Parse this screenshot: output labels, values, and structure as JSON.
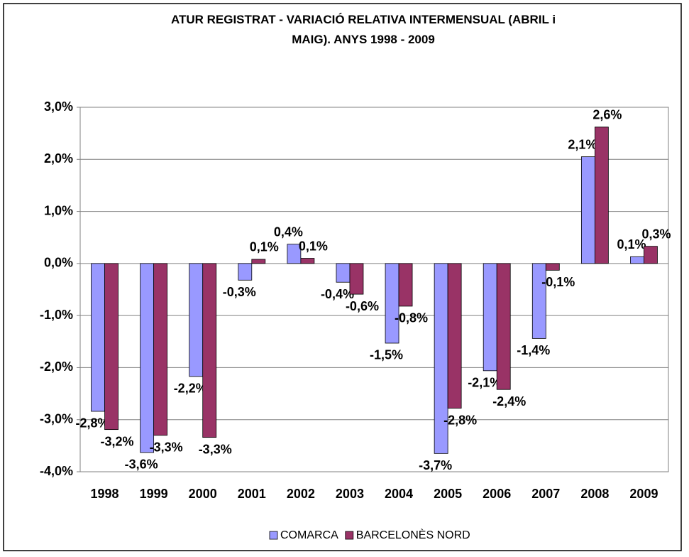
{
  "chart_data": {
    "type": "bar",
    "title": "ATUR REGISTRAT - VARIACIÓ RELATIVA INTERMENSUAL  (ABRIL i MAIG). ANYS 1998 - 2009",
    "categories": [
      "1998",
      "1999",
      "2000",
      "2001",
      "2002",
      "2003",
      "2004",
      "2005",
      "2006",
      "2007",
      "2008",
      "2009"
    ],
    "series": [
      {
        "name": "COMARCA",
        "color": "#9999ff",
        "values": [
          -2.84,
          -3.63,
          -2.17,
          -0.32,
          0.37,
          -0.36,
          -1.53,
          -3.65,
          -2.06,
          -1.44,
          2.05,
          0.13
        ],
        "value_labels": [
          "-2,8%",
          "-3,6%",
          "-2,2%",
          "-0,3%",
          "0,4%",
          "-0,4%",
          "-1,5%",
          "-3,7%",
          "-2,1%",
          "-1,4%",
          "2,1%",
          "0,1%"
        ]
      },
      {
        "name": "BARCELONÈS NORD",
        "color": "#993366",
        "values": [
          -3.19,
          -3.3,
          -3.34,
          0.08,
          0.1,
          -0.59,
          -0.82,
          -2.78,
          -2.42,
          -0.13,
          2.62,
          0.33
        ],
        "value_labels": [
          "-3,2%",
          "-3,3%",
          "-3,3%",
          "0,1%",
          "0,1%",
          "-0,6%",
          "-0,8%",
          "-2,8%",
          "-2,4%",
          "-0,1%",
          "2,6%",
          "0,3%"
        ]
      }
    ],
    "ylim": [
      -4,
      3
    ],
    "yticks": [
      {
        "value": -4,
        "label": "-4,0%"
      },
      {
        "value": -3,
        "label": "-3,0%"
      },
      {
        "value": -2,
        "label": "-2,0%"
      },
      {
        "value": -1,
        "label": "-1,0%"
      },
      {
        "value": 0,
        "label": "0,0%"
      },
      {
        "value": 1,
        "label": "1,0%"
      },
      {
        "value": 2,
        "label": "2,0%"
      },
      {
        "value": 3,
        "label": "3,0%"
      }
    ],
    "grid": true,
    "legend": "bottom"
  }
}
